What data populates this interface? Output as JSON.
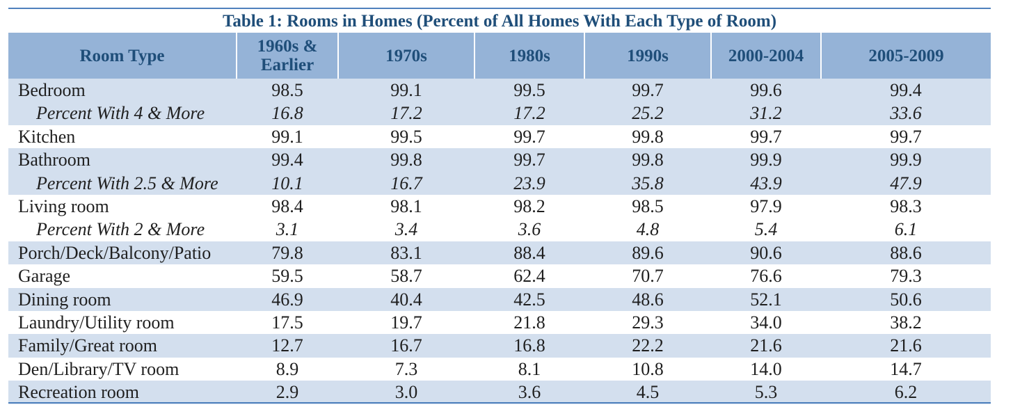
{
  "chart_data": {
    "type": "table",
    "title": "Table 1: Rooms in Homes (Percent of All Homes With Each Type of Room)",
    "columns": [
      "Room Type",
      "1960s & Earlier",
      "1970s",
      "1980s",
      "1990s",
      "2000-2004",
      "2005-2009"
    ],
    "rows": [
      {
        "label": "Bedroom",
        "values": [
          "98.5",
          "99.1",
          "99.5",
          "99.7",
          "99.6",
          "99.4"
        ],
        "sub": false,
        "shaded": true
      },
      {
        "label": "Percent With 4 & More",
        "values": [
          "16.8",
          "17.2",
          "17.2",
          "25.2",
          "31.2",
          "33.6"
        ],
        "sub": true,
        "shaded": true
      },
      {
        "label": "Kitchen",
        "values": [
          "99.1",
          "99.5",
          "99.7",
          "99.8",
          "99.7",
          "99.7"
        ],
        "sub": false,
        "shaded": false
      },
      {
        "label": "Bathroom",
        "values": [
          "99.4",
          "99.8",
          "99.7",
          "99.8",
          "99.9",
          "99.9"
        ],
        "sub": false,
        "shaded": true
      },
      {
        "label": "Percent With 2.5 & More",
        "values": [
          "10.1",
          "16.7",
          "23.9",
          "35.8",
          "43.9",
          "47.9"
        ],
        "sub": true,
        "shaded": true
      },
      {
        "label": "Living room",
        "values": [
          "98.4",
          "98.1",
          "98.2",
          "98.5",
          "97.9",
          "98.3"
        ],
        "sub": false,
        "shaded": false
      },
      {
        "label": "Percent With 2 & More",
        "values": [
          "3.1",
          "3.4",
          "3.6",
          "4.8",
          "5.4",
          "6.1"
        ],
        "sub": true,
        "shaded": false
      },
      {
        "label": "Porch/Deck/Balcony/Patio",
        "values": [
          "79.8",
          "83.1",
          "88.4",
          "89.6",
          "90.6",
          "88.6"
        ],
        "sub": false,
        "shaded": true
      },
      {
        "label": "Garage",
        "values": [
          "59.5",
          "58.7",
          "62.4",
          "70.7",
          "76.6",
          "79.3"
        ],
        "sub": false,
        "shaded": false
      },
      {
        "label": "Dining room",
        "values": [
          "46.9",
          "40.4",
          "42.5",
          "48.6",
          "52.1",
          "50.6"
        ],
        "sub": false,
        "shaded": true
      },
      {
        "label": "Laundry/Utility room",
        "values": [
          "17.5",
          "19.7",
          "21.8",
          "29.3",
          "34.0",
          "38.2"
        ],
        "sub": false,
        "shaded": false
      },
      {
        "label": "Family/Great room",
        "values": [
          "12.7",
          "16.7",
          "16.8",
          "22.2",
          "21.6",
          "21.6"
        ],
        "sub": false,
        "shaded": true
      },
      {
        "label": "Den/Library/TV room",
        "values": [
          "8.9",
          "7.3",
          "8.1",
          "10.8",
          "14.0",
          "14.7"
        ],
        "sub": false,
        "shaded": false
      },
      {
        "label": "Recreation room",
        "values": [
          "2.9",
          "3.0",
          "3.6",
          "4.5",
          "5.3",
          "6.2"
        ],
        "sub": false,
        "shaded": true
      }
    ]
  },
  "colors": {
    "header_bg": "#95b3d7",
    "band_bg": "#d3dfee",
    "title_text": "#1f4e79",
    "rule": "#4f81bd"
  }
}
